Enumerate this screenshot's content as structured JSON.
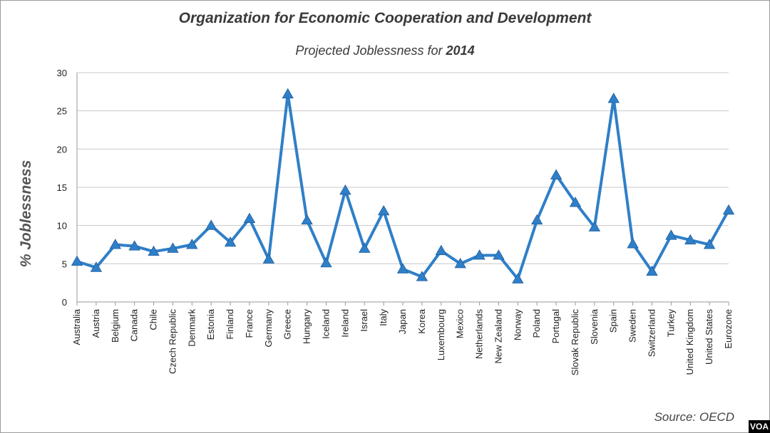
{
  "chart_data": {
    "type": "line",
    "title": "Organization for Economic Cooperation and Development",
    "subtitle_prefix": "Projected Joblessness for ",
    "subtitle_year": "2014",
    "xlabel": "",
    "ylabel": "% Joblessness",
    "ylim": [
      0,
      30
    ],
    "yticks": [
      0,
      5,
      10,
      15,
      20,
      25,
      30
    ],
    "grid": true,
    "legend": "none",
    "line_color": "#2f7fc8",
    "categories": [
      "Australia",
      "Austria",
      "Belgium",
      "Canada",
      "Chile",
      "Czech Republic",
      "Denmark",
      "Estonia",
      "Finland",
      "France",
      "Germany",
      "Greece",
      "Hungary",
      "Iceland",
      "Ireland",
      "Israel",
      "Italy",
      "Japan",
      "Korea",
      "Luxembourg",
      "Mexico",
      "Netherlands",
      "New Zealand",
      "Norway",
      "Poland",
      "Portugal",
      "Slovak Republic",
      "Slovenia",
      "Spain",
      "Sweden",
      "Switzerland",
      "Turkey",
      "United Kingdom",
      "United States",
      "Eurozone"
    ],
    "values": [
      5.3,
      4.5,
      7.5,
      7.3,
      6.6,
      7.0,
      7.5,
      10.0,
      7.8,
      10.9,
      5.6,
      27.2,
      10.7,
      5.1,
      14.6,
      7.0,
      11.9,
      4.3,
      3.3,
      6.7,
      5.0,
      6.1,
      6.1,
      3.0,
      10.7,
      16.6,
      13.0,
      9.8,
      26.6,
      7.6,
      4.0,
      8.7,
      8.1,
      7.5,
      12.0
    ]
  },
  "source": "Source: OECD",
  "badge": "VOA"
}
